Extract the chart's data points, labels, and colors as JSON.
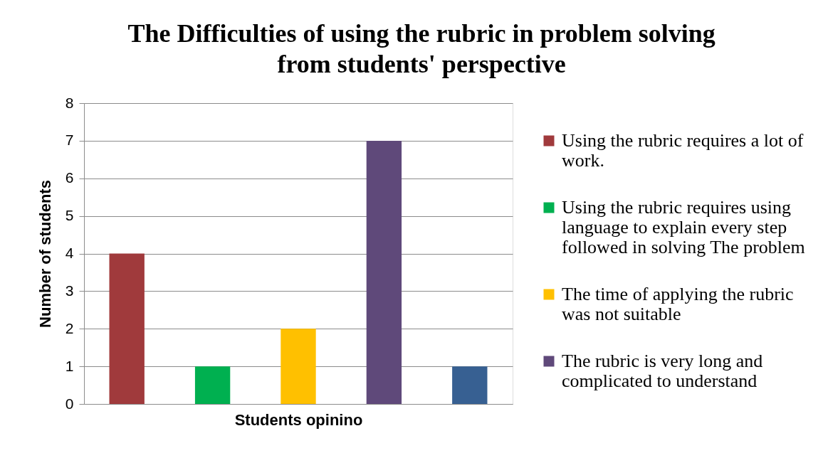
{
  "chart_data": {
    "type": "bar",
    "title": "The Difficulties of using the rubric in problem solving from students' perspective",
    "xlabel": "Students opinino",
    "ylabel": "Number of students",
    "categories": [
      null,
      null,
      null,
      null,
      null
    ],
    "series": [
      {
        "name": "Using the rubric requires a lot of work.",
        "color": "#a03a3c",
        "values": [
          4,
          null,
          null,
          null,
          null
        ]
      },
      {
        "name": "Using the rubric requires using language to explain every step followed in solving The problem",
        "color": "#00b050",
        "values": [
          null,
          1,
          null,
          null,
          null
        ]
      },
      {
        "name": "The time of applying the rubric was not suitable",
        "color": "#ffc000",
        "values": [
          null,
          null,
          2,
          null,
          null
        ]
      },
      {
        "name": "The rubric is very long and complicated to understand",
        "color": "#5f497a",
        "values": [
          null,
          null,
          null,
          7,
          null
        ]
      },
      {
        "color": "#376092",
        "values": [
          null,
          null,
          null,
          null,
          1
        ]
      }
    ],
    "ylim": [
      0,
      8
    ],
    "yticks": [
      0,
      1,
      2,
      3,
      4,
      5,
      6,
      7,
      8
    ],
    "grid": "y",
    "legend": "right"
  }
}
